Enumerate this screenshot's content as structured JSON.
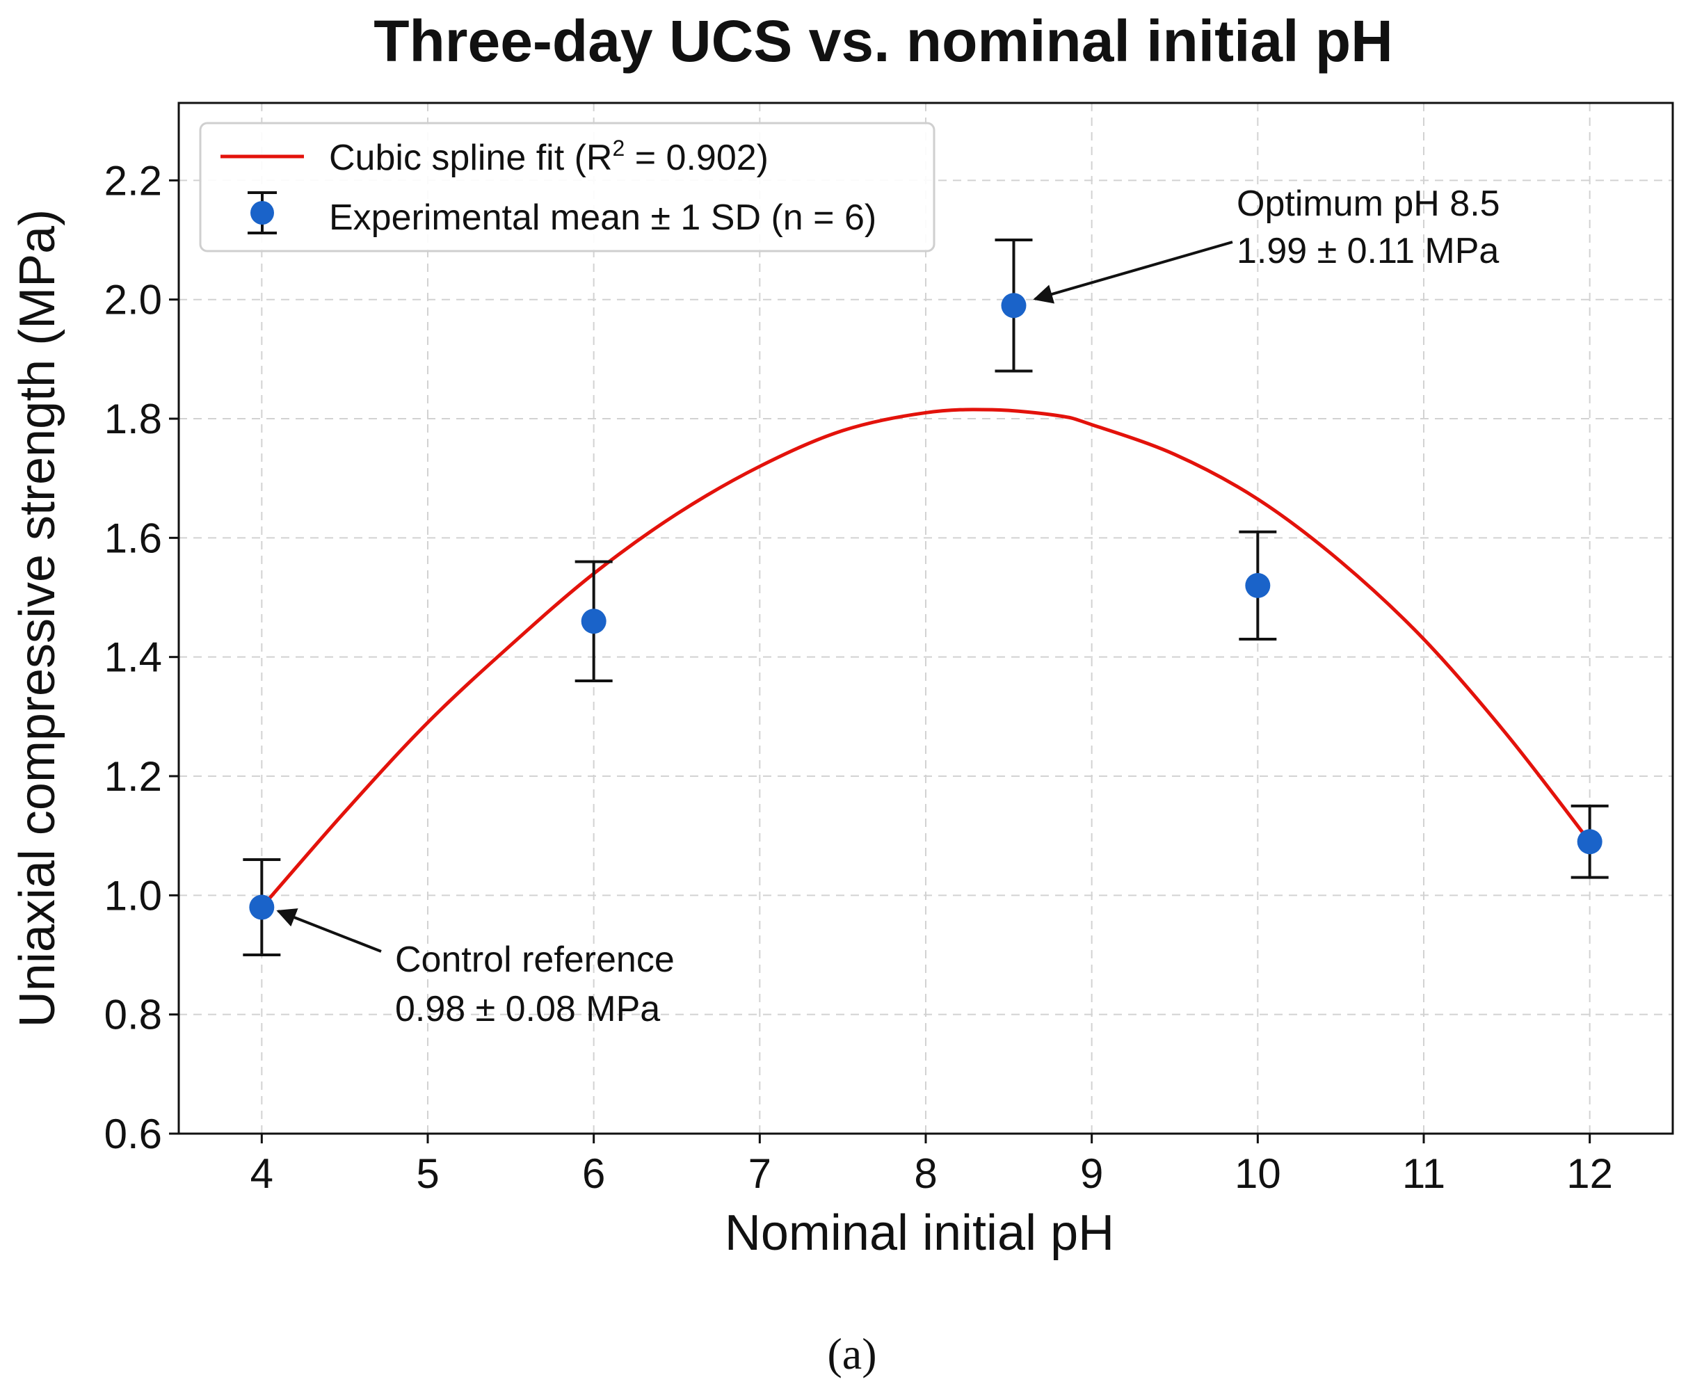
{
  "chart_data": {
    "type": "scatter",
    "title": "Three-day UCS vs. nominal initial pH",
    "xlabel": "Nominal initial pH",
    "ylabel": "Uniaxial compressive strength (MPa)",
    "xlim": [
      3.5,
      12.5
    ],
    "ylim": [
      0.6,
      2.33
    ],
    "xticks": [
      4,
      5,
      6,
      7,
      8,
      9,
      10,
      11,
      12
    ],
    "yticks": [
      0.6,
      0.8,
      1.0,
      1.2,
      1.4,
      1.6,
      1.8,
      2.0,
      2.2
    ],
    "xtick_labels": [
      "4",
      "5",
      "6",
      "7",
      "8",
      "9",
      "10",
      "11",
      "12"
    ],
    "ytick_labels": [
      "0.6",
      "0.8",
      "1.0",
      "1.2",
      "1.4",
      "1.6",
      "1.8",
      "2.0",
      "2.2"
    ],
    "grid": true,
    "legend_position": "top-left",
    "legend": {
      "fit_prefix": "Cubic spline fit (R",
      "fit_sup": "2",
      "fit_suffix": " = 0.902)",
      "points": "Experimental mean ± 1 SD (n = 6)"
    },
    "series": [
      {
        "name": "Experimental mean ± 1 SD (n = 6)",
        "kind": "points",
        "color": "#1a63c9",
        "x": [
          4,
          6,
          8.53,
          10,
          12
        ],
        "y": [
          0.98,
          1.46,
          1.99,
          1.52,
          1.09
        ],
        "err_lower": [
          0.08,
          0.1,
          0.11,
          0.09,
          0.06
        ],
        "err_upper": [
          0.08,
          0.1,
          0.11,
          0.09,
          0.06
        ]
      },
      {
        "name": "Cubic spline fit (R2 = 0.902)",
        "kind": "line",
        "color": "#e3120b",
        "x": [
          4,
          4.5,
          5,
          5.5,
          6,
          6.5,
          7,
          7.5,
          8,
          8.4,
          8.8,
          9,
          9.5,
          10,
          10.5,
          11,
          11.5,
          12
        ],
        "y": [
          0.98,
          1.14,
          1.29,
          1.42,
          1.54,
          1.64,
          1.72,
          1.78,
          1.81,
          1.815,
          1.805,
          1.79,
          1.74,
          1.665,
          1.56,
          1.43,
          1.27,
          1.09
        ]
      }
    ],
    "annotations": [
      {
        "line1": "Optimum pH 8.5",
        "line2": "1.99 ± 0.11 MPa",
        "target_x": 8.53,
        "target_y": 1.99
      },
      {
        "line1": "Control reference",
        "line2": "0.98 ± 0.08 MPa",
        "target_x": 4,
        "target_y": 0.98
      }
    ]
  },
  "caption": "(a)"
}
